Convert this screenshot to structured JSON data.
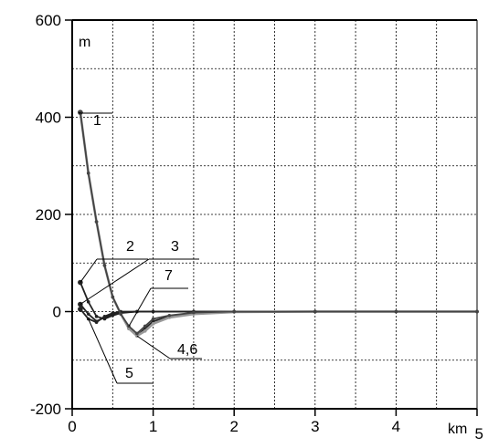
{
  "chart_data": {
    "type": "line",
    "title": "",
    "xlabel": "km",
    "ylabel": "m",
    "xlim": [
      0,
      5
    ],
    "ylim": [
      -200,
      600
    ],
    "grid": true,
    "x_ticks": [
      "0",
      "1",
      "2",
      "3",
      "4",
      "5"
    ],
    "y_ticks": [
      "-200",
      "0",
      "200",
      "400",
      "600"
    ],
    "series": [
      {
        "name": "1",
        "color": "#222222",
        "x": [
          0.1,
          0.2,
          0.3,
          0.4,
          0.5,
          0.6,
          0.7,
          0.8,
          0.9,
          1.0,
          1.2,
          1.5,
          2.0,
          3.0,
          4.0,
          5.0
        ],
        "y": [
          410,
          285,
          185,
          95,
          30,
          -5,
          -35,
          -50,
          -35,
          -20,
          -10,
          -3,
          0,
          0,
          0,
          0
        ]
      },
      {
        "name": "2",
        "color": "#222222",
        "x": [
          0.1,
          0.2,
          0.3,
          0.4,
          0.5,
          0.6,
          0.8,
          1.0,
          1.5,
          2.0,
          3.0,
          4.0,
          5.0
        ],
        "y": [
          60,
          20,
          -10,
          -15,
          -8,
          -3,
          0,
          0,
          0,
          0,
          0,
          0,
          0
        ]
      },
      {
        "name": "3",
        "color": "#222222",
        "x": [
          0.1,
          0.2,
          0.3,
          0.4,
          0.5,
          0.6,
          0.8,
          1.0,
          1.5,
          2.0,
          3.0,
          4.0,
          5.0
        ],
        "y": [
          15,
          -5,
          -20,
          -12,
          -5,
          -2,
          0,
          0,
          0,
          0,
          0,
          0,
          0
        ]
      },
      {
        "name": "4,6",
        "color": "#999999",
        "x": [
          0.1,
          0.2,
          0.3,
          0.4,
          0.5,
          0.6,
          0.7,
          0.8,
          0.9,
          1.0,
          1.2,
          1.5,
          2.0,
          3.0,
          4.0,
          5.0
        ],
        "y": [
          410,
          285,
          185,
          95,
          30,
          -5,
          -35,
          -50,
          -40,
          -25,
          -12,
          -5,
          -1,
          0,
          0,
          0
        ]
      },
      {
        "name": "5",
        "color": "#222222",
        "x": [
          0.1,
          0.2,
          0.3,
          0.4,
          0.5,
          0.6,
          0.8,
          1.0,
          1.5,
          2.0,
          3.0,
          4.0,
          5.0
        ],
        "y": [
          5,
          -15,
          -22,
          -10,
          -3,
          0,
          0,
          0,
          0,
          0,
          0,
          0,
          0
        ]
      },
      {
        "name": "7",
        "color": "#444444",
        "x": [
          0.1,
          0.2,
          0.3,
          0.4,
          0.5,
          0.6,
          0.7,
          0.8,
          0.9,
          1.0,
          1.2,
          1.5,
          2.0,
          3.0,
          4.0,
          5.0
        ],
        "y": [
          410,
          285,
          185,
          95,
          30,
          -5,
          -30,
          -45,
          -30,
          -15,
          -8,
          -2,
          0,
          0,
          0,
          0
        ]
      }
    ]
  }
}
